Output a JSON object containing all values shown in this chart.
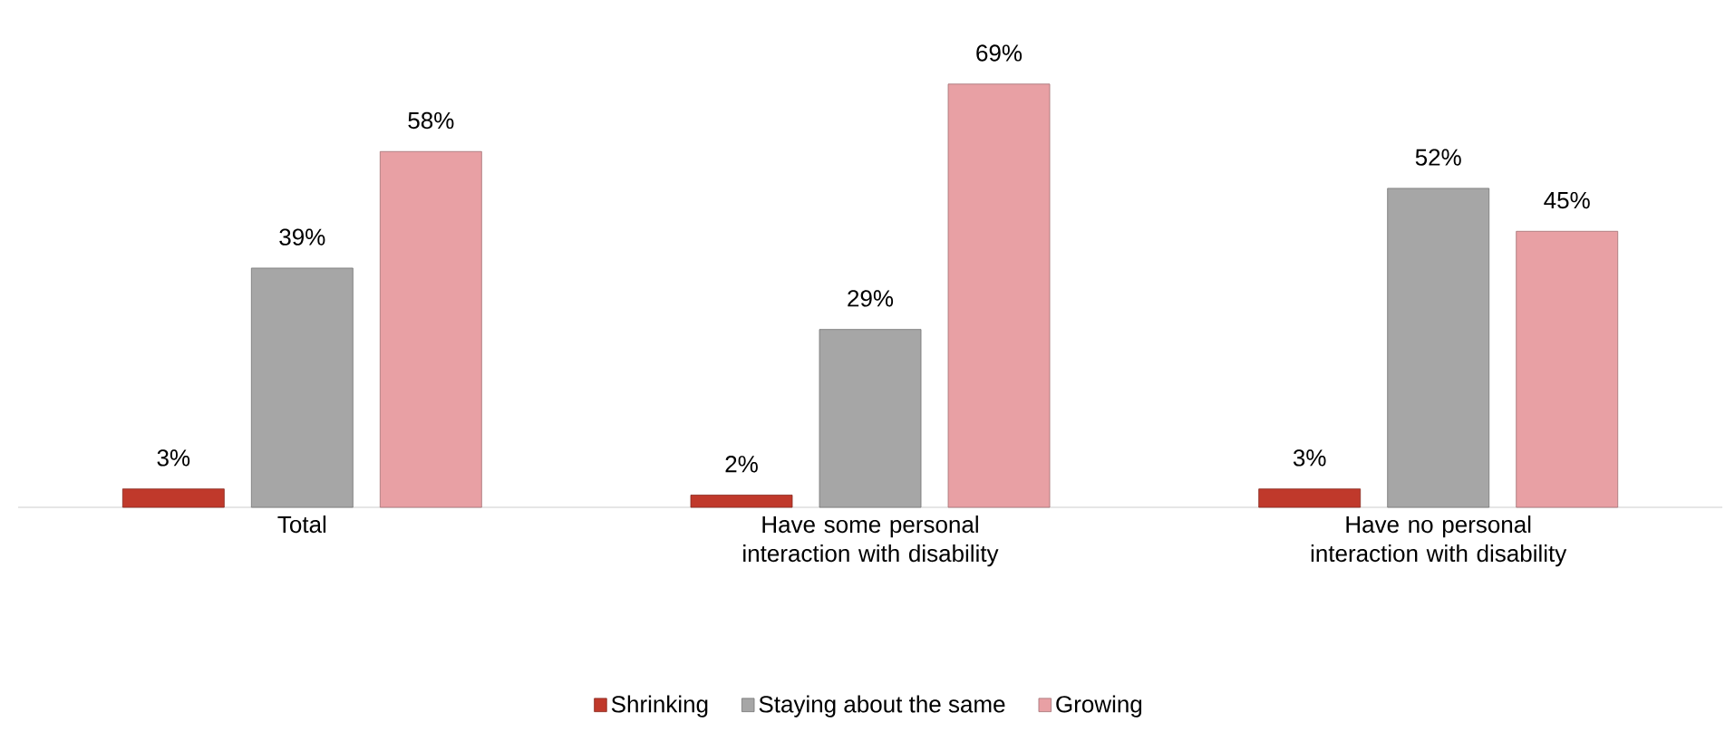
{
  "chart_data": {
    "type": "bar",
    "categories": [
      "Total",
      "Have some personal interaction with disability",
      "Have no personal interaction with disability"
    ],
    "series": [
      {
        "name": "Shrinking",
        "color": "#c0392b",
        "values": [
          3,
          2,
          3
        ],
        "value_labels": [
          "3%",
          "2%",
          "3%"
        ]
      },
      {
        "name": "Staying about the same",
        "color": "#a6a6a6",
        "values": [
          39,
          29,
          52
        ],
        "value_labels": [
          "39%",
          "29%",
          "52%"
        ]
      },
      {
        "name": "Growing",
        "color": "#e8a0a4",
        "values": [
          58,
          69,
          45
        ],
        "value_labels": [
          "58%",
          "69%",
          "45%"
        ]
      }
    ],
    "ylim": [
      0,
      70
    ],
    "legend": "bottom"
  }
}
